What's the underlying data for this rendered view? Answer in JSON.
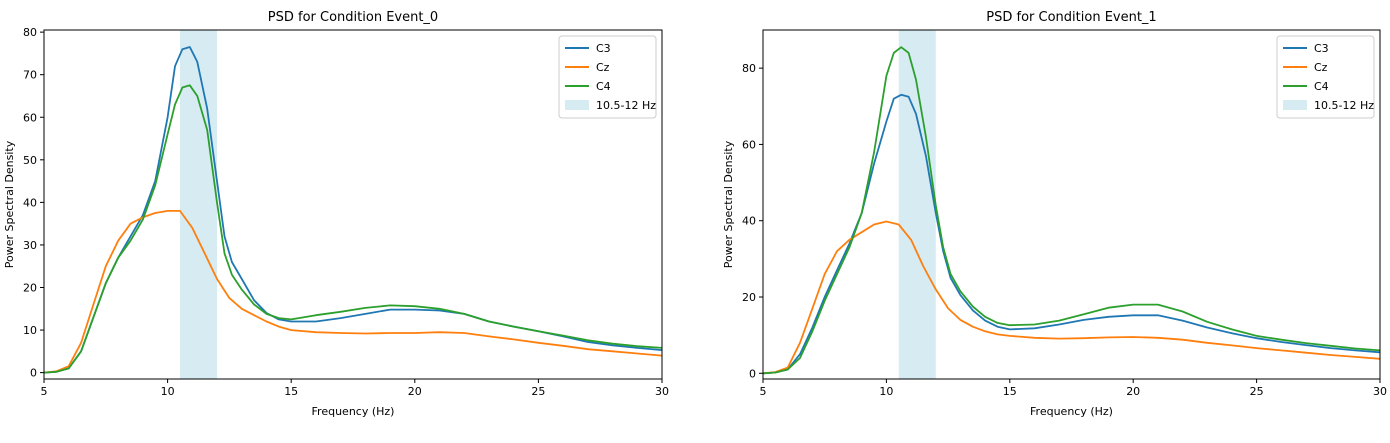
{
  "chart_data": [
    {
      "type": "line",
      "title": "PSD for Condition Event_0",
      "xlabel": "Frequency (Hz)",
      "ylabel": "Power Spectral Density",
      "xlim": [
        5,
        30
      ],
      "ylim": [
        -1.5,
        80.5
      ],
      "xticks": [
        5,
        10,
        15,
        20,
        25,
        30
      ],
      "yticks": [
        0,
        10,
        20,
        30,
        40,
        50,
        60,
        70,
        80
      ],
      "grid": false,
      "legend": "top-right",
      "band": {
        "label": "10.5-12 Hz",
        "from": 10.5,
        "to": 12,
        "color": "#add8e6"
      },
      "series": [
        {
          "name": "C3",
          "color": "#1f77b4",
          "x": [
            5,
            5.5,
            6,
            6.5,
            7,
            7.5,
            8,
            8.5,
            9,
            9.5,
            10,
            10.3,
            10.6,
            10.9,
            11.2,
            11.6,
            12,
            12.3,
            12.6,
            13,
            13.5,
            14,
            14.5,
            15,
            16,
            17,
            18,
            19,
            20,
            21,
            22,
            23,
            24,
            25,
            26,
            27,
            28,
            29,
            30
          ],
          "y": [
            0,
            0.2,
            1,
            5,
            13,
            21,
            27,
            32,
            37,
            45,
            60,
            72,
            76,
            76.5,
            73,
            62,
            45,
            32,
            26,
            22,
            17,
            14,
            12.5,
            12,
            12,
            12.8,
            13.8,
            14.8,
            14.8,
            14.6,
            13.8,
            12,
            10.8,
            9.7,
            8.5,
            7.2,
            6.4,
            5.8,
            5.3
          ]
        },
        {
          "name": "Cz",
          "color": "#ff7f0e",
          "x": [
            5,
            5.5,
            6,
            6.5,
            7,
            7.5,
            8,
            8.5,
            9,
            9.5,
            10,
            10.5,
            11,
            11.5,
            12,
            12.5,
            13,
            13.5,
            14,
            14.5,
            15,
            16,
            17,
            18,
            19,
            20,
            21,
            22,
            23,
            24,
            25,
            26,
            27,
            28,
            29,
            30
          ],
          "y": [
            0,
            0.3,
            1.5,
            7,
            16,
            25,
            31,
            35,
            36.5,
            37.5,
            38,
            38,
            34,
            28,
            22,
            17.5,
            15,
            13.5,
            12,
            10.8,
            10,
            9.5,
            9.3,
            9.2,
            9.3,
            9.3,
            9.5,
            9.3,
            8.5,
            7.8,
            7,
            6.3,
            5.5,
            5,
            4.5,
            4
          ]
        },
        {
          "name": "C4",
          "color": "#2ca02c",
          "x": [
            5,
            5.5,
            6,
            6.5,
            7,
            7.5,
            8,
            8.5,
            9,
            9.5,
            10,
            10.3,
            10.6,
            10.9,
            11.2,
            11.6,
            12,
            12.3,
            12.6,
            13,
            13.5,
            14,
            14.5,
            15,
            16,
            17,
            18,
            19,
            20,
            21,
            22,
            23,
            24,
            25,
            26,
            27,
            28,
            29,
            30
          ],
          "y": [
            0,
            0.2,
            1,
            5,
            13,
            21,
            27,
            31,
            36,
            44,
            56,
            63,
            67,
            67.5,
            65,
            57,
            40,
            28,
            23,
            19.5,
            16,
            13.8,
            12.8,
            12.5,
            13.5,
            14.3,
            15.2,
            15.8,
            15.6,
            15,
            13.8,
            12,
            10.8,
            9.7,
            8.7,
            7.6,
            6.8,
            6.2,
            5.8
          ]
        }
      ]
    },
    {
      "type": "line",
      "title": "PSD for Condition Event_1",
      "xlabel": "Frequency (Hz)",
      "ylabel": "Power Spectral Density",
      "xlim": [
        5,
        30
      ],
      "ylim": [
        -1.5,
        90
      ],
      "xticks": [
        5,
        10,
        15,
        20,
        25,
        30
      ],
      "yticks": [
        0,
        20,
        40,
        60,
        80
      ],
      "grid": false,
      "legend": "top-right",
      "band": {
        "label": "10.5-12 Hz",
        "from": 10.5,
        "to": 12,
        "color": "#add8e6"
      },
      "series": [
        {
          "name": "C3",
          "color": "#1f77b4",
          "x": [
            5,
            5.5,
            6,
            6.5,
            7,
            7.5,
            8,
            8.5,
            9,
            9.5,
            10,
            10.3,
            10.6,
            10.9,
            11.2,
            11.6,
            12,
            12.3,
            12.6,
            13,
            13.5,
            14,
            14.5,
            15,
            16,
            17,
            18,
            19,
            20,
            21,
            22,
            23,
            24,
            25,
            26,
            27,
            28,
            29,
            30
          ],
          "y": [
            0,
            0.2,
            1,
            5,
            12,
            20,
            27,
            34,
            42,
            55,
            66,
            72,
            73,
            72.5,
            68,
            57,
            42,
            32,
            25,
            20.5,
            16.5,
            13.8,
            12.2,
            11.5,
            11.8,
            12.8,
            14,
            14.8,
            15.2,
            15.2,
            13.8,
            12,
            10.5,
            9.2,
            8.2,
            7.4,
            6.6,
            6,
            5.5
          ]
        },
        {
          "name": "Cz",
          "color": "#ff7f0e",
          "x": [
            5,
            5.5,
            6,
            6.5,
            7,
            7.5,
            8,
            8.5,
            9,
            9.5,
            10,
            10.5,
            11,
            11.5,
            12,
            12.5,
            13,
            13.5,
            14,
            14.5,
            15,
            16,
            17,
            18,
            19,
            20,
            21,
            22,
            23,
            24,
            25,
            26,
            27,
            28,
            29,
            30
          ],
          "y": [
            0,
            0.3,
            1.5,
            8,
            17,
            26,
            32,
            35,
            37,
            39,
            39.8,
            39,
            35,
            28,
            22,
            17,
            14,
            12.2,
            11,
            10.2,
            9.8,
            9.3,
            9.1,
            9.2,
            9.4,
            9.5,
            9.3,
            8.8,
            8,
            7.3,
            6.6,
            6,
            5.4,
            4.8,
            4.3,
            3.8
          ]
        },
        {
          "name": "C4",
          "color": "#2ca02c",
          "x": [
            5,
            5.5,
            6,
            6.5,
            7,
            7.5,
            8,
            8.5,
            9,
            9.5,
            10,
            10.3,
            10.6,
            10.9,
            11.2,
            11.6,
            12,
            12.3,
            12.6,
            13,
            13.5,
            14,
            14.5,
            15,
            16,
            17,
            18,
            19,
            20,
            21,
            22,
            23,
            24,
            25,
            26,
            27,
            28,
            29,
            30
          ],
          "y": [
            0,
            0.2,
            1,
            4,
            11,
            19,
            26,
            33,
            42,
            58,
            78,
            84,
            85.5,
            84,
            77,
            62,
            44,
            33,
            26,
            21.5,
            17.5,
            14.8,
            13.2,
            12.6,
            12.8,
            13.8,
            15.5,
            17.2,
            18,
            18,
            16.2,
            13.5,
            11.5,
            9.8,
            8.8,
            7.9,
            7.2,
            6.5,
            6
          ]
        }
      ]
    }
  ]
}
